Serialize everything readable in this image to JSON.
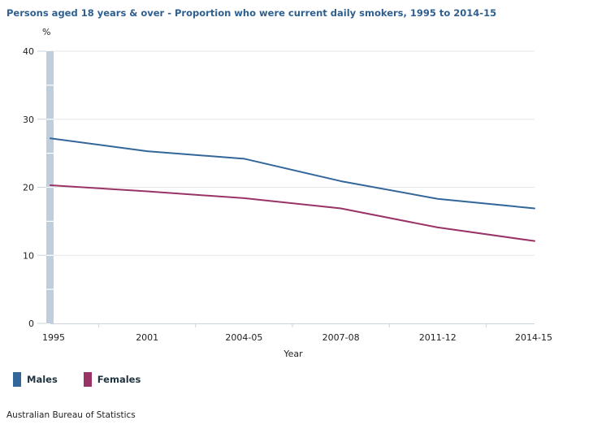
{
  "chart_data": {
    "type": "line",
    "title": "Persons aged 18 years & over - Proportion who were current daily smokers, 1995 to 2014-15",
    "xlabel": "Year",
    "ylabel": "%",
    "categories": [
      "1995",
      "2001",
      "2004-05",
      "2007-08",
      "2011-12",
      "2014-15"
    ],
    "ylim": [
      0,
      40
    ],
    "yticks": [
      0,
      10,
      20,
      30,
      40
    ],
    "grid": true,
    "legend_position": "bottom-left",
    "series": [
      {
        "name": "Males",
        "color": "#336699",
        "values": [
          27.2,
          25.3,
          24.2,
          20.9,
          18.3,
          16.9
        ]
      },
      {
        "name": "Females",
        "color": "#993366",
        "values": [
          20.3,
          19.4,
          18.4,
          16.9,
          14.1,
          12.1
        ]
      }
    ]
  },
  "legend": {
    "items": [
      {
        "label": "Males",
        "color": "#336699"
      },
      {
        "label": "Females",
        "color": "#993366"
      }
    ]
  },
  "source": "Australian Bureau of Statistics",
  "colors": {
    "title": "#2f5f8f",
    "axis_bar": "#bfcedc",
    "gridline": "#e6e6e6",
    "axis_line": "#c8d3de"
  }
}
